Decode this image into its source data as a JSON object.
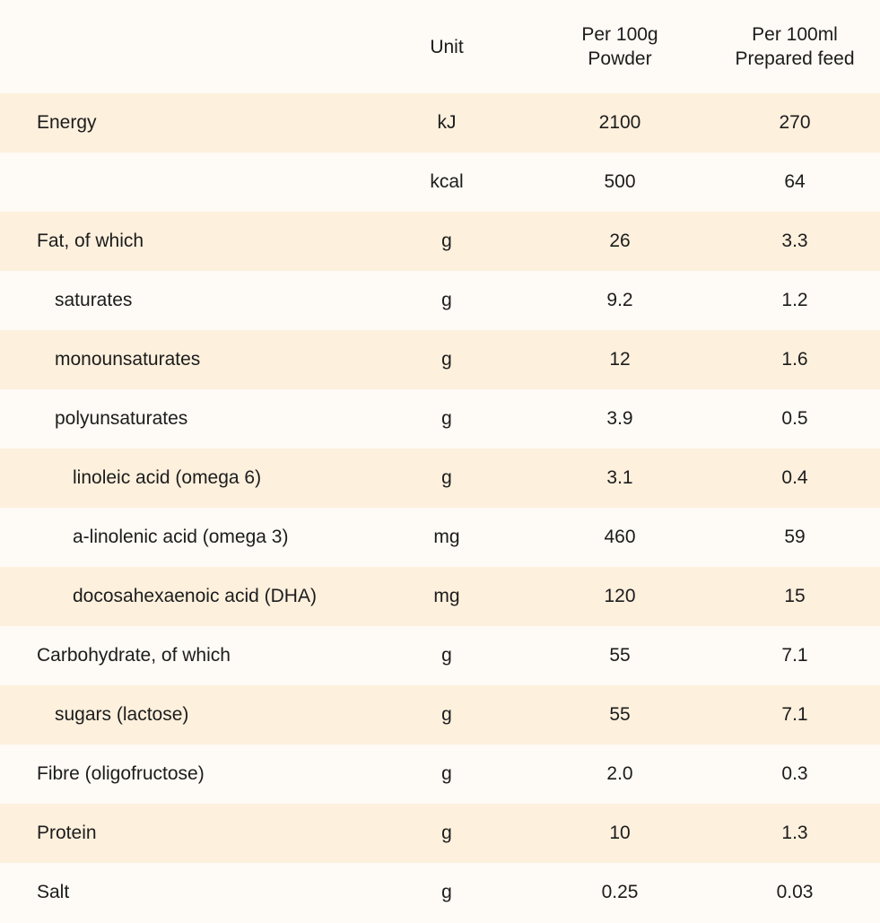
{
  "header": {
    "name": "",
    "unit": "Unit",
    "powder_line1": "Per 100g",
    "powder_line2": "Powder",
    "prepared_line1": "Per 100ml",
    "prepared_line2": "Prepared feed"
  },
  "rows": [
    {
      "name": "Energy",
      "unit": "kJ",
      "powder": "2100",
      "prepared": "270"
    },
    {
      "name": "",
      "unit": "kcal",
      "powder": "500",
      "prepared": "64"
    },
    {
      "name": "Fat, of which",
      "unit": "g",
      "powder": "26",
      "prepared": "3.3"
    },
    {
      "name": "saturates",
      "unit": "g",
      "powder": "9.2",
      "prepared": "1.2"
    },
    {
      "name": "monounsaturates",
      "unit": "g",
      "powder": "12",
      "prepared": "1.6"
    },
    {
      "name": "polyunsaturates",
      "unit": "g",
      "powder": "3.9",
      "prepared": "0.5"
    },
    {
      "name": "linoleic acid (omega 6)",
      "unit": "g",
      "powder": "3.1",
      "prepared": "0.4"
    },
    {
      "name": "a-linolenic acid (omega 3)",
      "unit": "mg",
      "powder": "460",
      "prepared": "59"
    },
    {
      "name": "docosahexaenoic acid (DHA)",
      "unit": "mg",
      "powder": "120",
      "prepared": "15"
    },
    {
      "name": "Carbohydrate, of which",
      "unit": "g",
      "powder": "55",
      "prepared": "7.1"
    },
    {
      "name": "sugars (lactose)",
      "unit": "g",
      "powder": "55",
      "prepared": "7.1"
    },
    {
      "name": "Fibre (oligofructose)",
      "unit": "g",
      "powder": "2.0",
      "prepared": "0.3"
    },
    {
      "name": "Protein",
      "unit": "g",
      "powder": "10",
      "prepared": "1.3"
    },
    {
      "name": "Salt",
      "unit": "g",
      "powder": "0.25",
      "prepared": "0.03"
    }
  ],
  "colors": {
    "band": "#fdf0dd",
    "background": "#fefaf5",
    "text": "#1c1c1c"
  }
}
